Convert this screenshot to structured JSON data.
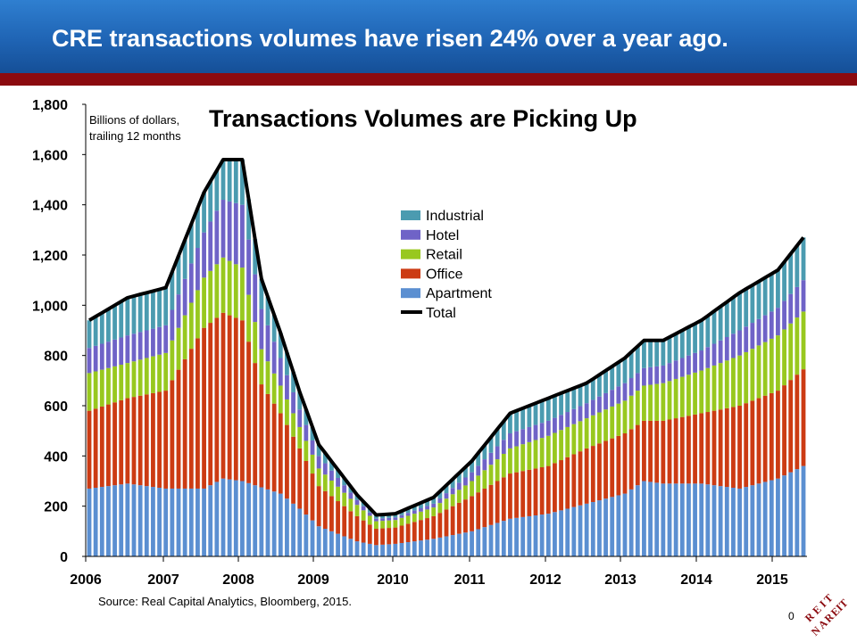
{
  "header": {
    "title": "CRE transactions volumes have risen 24% over a year ago."
  },
  "footer": {
    "source": "Source: Real Capital Analytics, Bloomberg, 2015.",
    "page_number": "0"
  },
  "logo": {
    "text": "REIT NAREIT"
  },
  "colors": {
    "banner": "#1f64b4",
    "stripe": "#8b0a0f",
    "apartment": "#5b8fd1",
    "office": "#cc3b13",
    "retail": "#98c81f",
    "hotel": "#6f63c7",
    "industrial": "#4b9bb0",
    "total": "#000000"
  },
  "chart_data": {
    "type": "bar",
    "stacked": true,
    "title": "Transactions Volumes are Picking Up",
    "unit_note": [
      "Billions of dollars,",
      "trailing 12 months"
    ],
    "ylim": [
      0,
      1800
    ],
    "yticks": [
      "0",
      "200",
      "400",
      "600",
      "800",
      "1,000",
      "1,200",
      "1,400",
      "1,600",
      "1,800"
    ],
    "xticks": [
      "2006",
      "2007",
      "2008",
      "2009",
      "2010",
      "2011",
      "2012",
      "2013",
      "2014",
      "2015"
    ],
    "x_start": "2006-01",
    "frequency": "monthly",
    "legend_position": "center",
    "series": [
      {
        "name": "Apartment",
        "color": "#5b8fd1",
        "keys": [
          [
            0,
            270
          ],
          [
            6,
            290
          ],
          [
            12,
            270
          ],
          [
            18,
            270
          ],
          [
            21,
            310
          ],
          [
            24,
            300
          ],
          [
            30,
            250
          ],
          [
            33,
            190
          ],
          [
            36,
            120
          ],
          [
            42,
            60
          ],
          [
            45,
            45
          ],
          [
            48,
            50
          ],
          [
            54,
            70
          ],
          [
            60,
            100
          ],
          [
            66,
            150
          ],
          [
            72,
            170
          ],
          [
            78,
            210
          ],
          [
            84,
            250
          ],
          [
            87,
            300
          ],
          [
            90,
            290
          ],
          [
            96,
            290
          ],
          [
            102,
            270
          ],
          [
            108,
            310
          ],
          [
            112,
            360
          ]
        ]
      },
      {
        "name": "Office",
        "color": "#cc3b13",
        "keys": [
          [
            0,
            310
          ],
          [
            6,
            340
          ],
          [
            12,
            390
          ],
          [
            18,
            640
          ],
          [
            21,
            660
          ],
          [
            24,
            640
          ],
          [
            27,
            410
          ],
          [
            30,
            320
          ],
          [
            33,
            240
          ],
          [
            36,
            160
          ],
          [
            42,
            100
          ],
          [
            45,
            65
          ],
          [
            48,
            65
          ],
          [
            54,
            90
          ],
          [
            60,
            140
          ],
          [
            66,
            180
          ],
          [
            72,
            190
          ],
          [
            78,
            220
          ],
          [
            84,
            240
          ],
          [
            87,
            240
          ],
          [
            90,
            250
          ],
          [
            96,
            280
          ],
          [
            102,
            330
          ],
          [
            108,
            350
          ],
          [
            112,
            385
          ]
        ]
      },
      {
        "name": "Retail",
        "color": "#98c81f",
        "keys": [
          [
            0,
            150
          ],
          [
            6,
            140
          ],
          [
            12,
            150
          ],
          [
            18,
            200
          ],
          [
            21,
            220
          ],
          [
            24,
            210
          ],
          [
            27,
            140
          ],
          [
            30,
            110
          ],
          [
            33,
            85
          ],
          [
            36,
            70
          ],
          [
            42,
            45
          ],
          [
            45,
            30
          ],
          [
            48,
            30
          ],
          [
            54,
            35
          ],
          [
            60,
            60
          ],
          [
            66,
            100
          ],
          [
            72,
            120
          ],
          [
            78,
            120
          ],
          [
            84,
            130
          ],
          [
            87,
            140
          ],
          [
            90,
            150
          ],
          [
            96,
            170
          ],
          [
            102,
            200
          ],
          [
            108,
            220
          ],
          [
            112,
            230
          ]
        ]
      },
      {
        "name": "Hotel",
        "color": "#6f63c7",
        "keys": [
          [
            0,
            100
          ],
          [
            6,
            110
          ],
          [
            12,
            110
          ],
          [
            18,
            180
          ],
          [
            21,
            230
          ],
          [
            24,
            250
          ],
          [
            27,
            160
          ],
          [
            30,
            110
          ],
          [
            33,
            70
          ],
          [
            36,
            50
          ],
          [
            42,
            20
          ],
          [
            45,
            10
          ],
          [
            48,
            10
          ],
          [
            54,
            15
          ],
          [
            60,
            35
          ],
          [
            66,
            60
          ],
          [
            72,
            60
          ],
          [
            78,
            60
          ],
          [
            84,
            70
          ],
          [
            87,
            70
          ],
          [
            90,
            70
          ],
          [
            96,
            80
          ],
          [
            102,
            100
          ],
          [
            108,
            110
          ],
          [
            112,
            125
          ]
        ]
      },
      {
        "name": "Industrial",
        "color": "#4b9bb0",
        "keys": [
          [
            0,
            110
          ],
          [
            6,
            150
          ],
          [
            12,
            150
          ],
          [
            18,
            160
          ],
          [
            21,
            160
          ],
          [
            24,
            180
          ],
          [
            27,
            120
          ],
          [
            30,
            100
          ],
          [
            33,
            70
          ],
          [
            36,
            45
          ],
          [
            42,
            20
          ],
          [
            45,
            15
          ],
          [
            48,
            15
          ],
          [
            54,
            25
          ],
          [
            60,
            45
          ],
          [
            66,
            80
          ],
          [
            72,
            90
          ],
          [
            78,
            80
          ],
          [
            84,
            100
          ],
          [
            87,
            110
          ],
          [
            90,
            100
          ],
          [
            96,
            120
          ],
          [
            102,
            150
          ],
          [
            108,
            150
          ],
          [
            112,
            170
          ]
        ]
      }
    ],
    "total": {
      "name": "Total",
      "color": "#000000"
    }
  }
}
